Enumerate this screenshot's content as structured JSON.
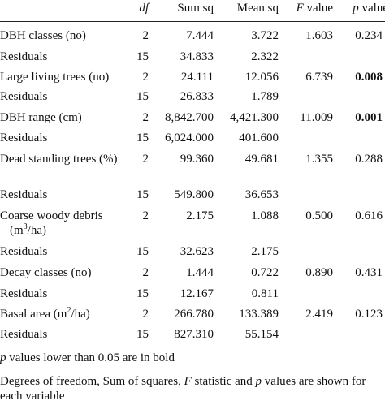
{
  "table": {
    "header": [
      [],
      [
        {
          "t": "df",
          "i": true
        }
      ],
      [
        {
          "t": "Sum sq"
        }
      ],
      [
        {
          "t": "Mean sq"
        }
      ],
      [
        {
          "t": "F",
          "i": true
        },
        {
          "t": " value"
        }
      ],
      [
        {
          "t": "p",
          "i": true
        },
        {
          "t": " value"
        }
      ]
    ],
    "rows": [
      {
        "label": [
          {
            "t": "DBH classes (no)"
          }
        ],
        "df": "2",
        "sum_sq": "7.444",
        "mean_sq": "3.722",
        "f": "1.603",
        "p": "0.234",
        "bold": false
      },
      {
        "label": [
          {
            "t": "Residuals"
          }
        ],
        "df": "15",
        "sum_sq": "34.833",
        "mean_sq": "2.322",
        "f": "",
        "p": "",
        "bold": false
      },
      {
        "label": [
          {
            "t": "Large living trees (no)"
          }
        ],
        "df": "2",
        "sum_sq": "24.111",
        "mean_sq": "12.056",
        "f": "6.739",
        "p": "0.008",
        "bold": true
      },
      {
        "label": [
          {
            "t": "Residuals"
          }
        ],
        "df": "15",
        "sum_sq": "26.833",
        "mean_sq": "1.789",
        "f": "",
        "p": "",
        "bold": false
      },
      {
        "label": [
          {
            "t": "DBH range (cm)"
          }
        ],
        "df": "2",
        "sum_sq": "8,842.700",
        "mean_sq": "4,421.300",
        "f": "11.009",
        "p": "0.001",
        "bold": true
      },
      {
        "label": [
          {
            "t": "Residuals"
          }
        ],
        "df": "15",
        "sum_sq": "6,024.000",
        "mean_sq": "401.600",
        "f": "",
        "p": "",
        "bold": false
      },
      {
        "label": [
          {
            "t": "Dead standing trees (%)"
          }
        ],
        "df": "2",
        "sum_sq": "99.360",
        "mean_sq": "49.681",
        "f": "1.355",
        "p": "0.288",
        "bold": false
      },
      {
        "label": [
          {
            "t": "Residuals"
          }
        ],
        "df": "15",
        "sum_sq": "549.800",
        "mean_sq": "36.653",
        "f": "",
        "p": "",
        "bold": false
      },
      {
        "label": [
          {
            "t": "Coarse woody debris (m"
          },
          {
            "t": "3",
            "sup": true
          },
          {
            "t": "/ha)"
          }
        ],
        "df": "2",
        "sum_sq": "2.175",
        "mean_sq": "1.088",
        "f": "0.500",
        "p": "0.616",
        "bold": false
      },
      {
        "label": [
          {
            "t": "Residuals"
          }
        ],
        "df": "15",
        "sum_sq": "32.623",
        "mean_sq": "2.175",
        "f": "",
        "p": "",
        "bold": false
      },
      {
        "label": [
          {
            "t": "Decay classes (no)"
          }
        ],
        "df": "2",
        "sum_sq": "1.444",
        "mean_sq": "0.722",
        "f": "0.890",
        "p": "0.431",
        "bold": false
      },
      {
        "label": [
          {
            "t": "Residuals"
          }
        ],
        "df": "15",
        "sum_sq": "12.167",
        "mean_sq": "0.811",
        "f": "",
        "p": "",
        "bold": false
      },
      {
        "label": [
          {
            "t": "Basal area (m"
          },
          {
            "t": "2",
            "sup": true
          },
          {
            "t": "/ha)"
          }
        ],
        "df": "2",
        "sum_sq": "266.780",
        "mean_sq": "133.389",
        "f": "2.419",
        "p": "0.123",
        "bold": false
      },
      {
        "label": [
          {
            "t": "Residuals"
          }
        ],
        "df": "15",
        "sum_sq": "827.310",
        "mean_sq": "55.154",
        "f": "",
        "p": "",
        "bold": false
      }
    ],
    "notes": [
      [
        {
          "t": "p",
          "i": true
        },
        {
          "t": " values lower than 0.05 are in bold"
        }
      ],
      [
        {
          "t": "Degrees of freedom, Sum of squares, "
        },
        {
          "t": "F",
          "i": true
        },
        {
          "t": " statistic and "
        },
        {
          "t": "p",
          "i": true
        },
        {
          "t": " values are shown for each variable"
        }
      ]
    ]
  }
}
